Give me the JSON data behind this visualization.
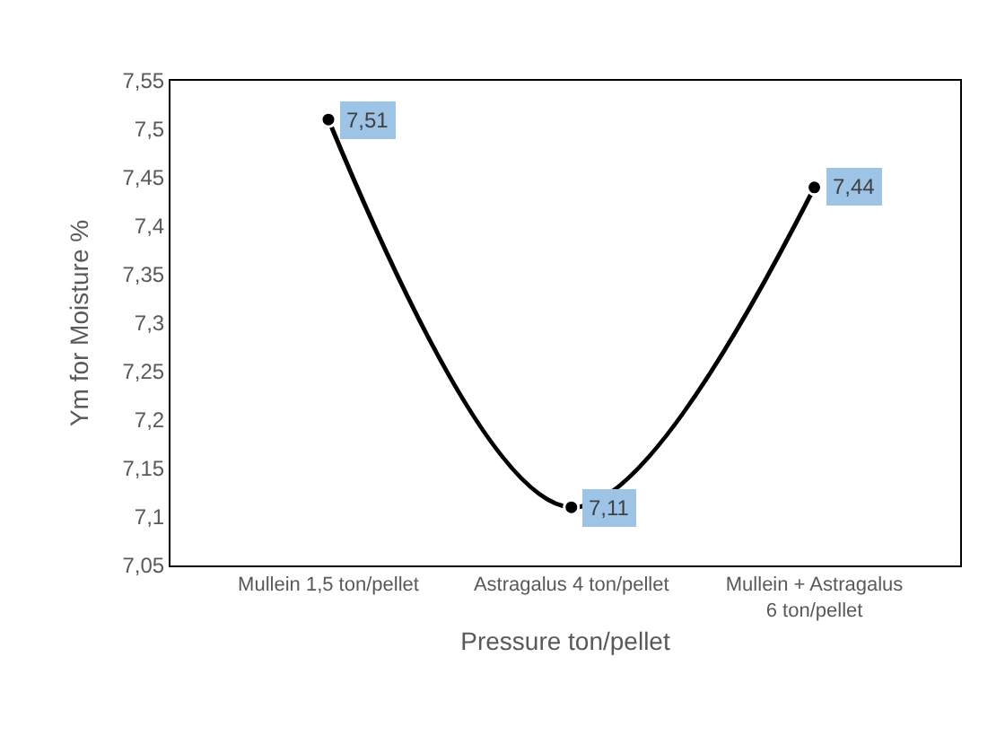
{
  "chart_data": {
    "type": "line",
    "xlabel": "Pressure ton/pellet",
    "ylabel": "Ym for Moisture %",
    "categories": [
      "Mullein 1,5 ton/pellet",
      "Astragalus 4 ton/pellet",
      "Mullein + Astragalus 6 ton/pellet"
    ],
    "series": [
      {
        "color": "#000000",
        "values": [
          7.51,
          7.11,
          7.44
        ],
        "value_labels": [
          "7,51",
          "7,11",
          "7,44"
        ]
      }
    ],
    "ylim": [
      7.05,
      7.55
    ],
    "yticks": [
      {
        "value": 7.05,
        "label": "7,05"
      },
      {
        "value": 7.1,
        "label": "7,1"
      },
      {
        "value": 7.15,
        "label": "7,15"
      },
      {
        "value": 7.2,
        "label": "7,2"
      },
      {
        "value": 7.25,
        "label": "7,25"
      },
      {
        "value": 7.3,
        "label": "7,3"
      },
      {
        "value": 7.35,
        "label": "7,35"
      },
      {
        "value": 7.4,
        "label": "7,4"
      },
      {
        "value": 7.45,
        "label": "7,45"
      },
      {
        "value": 7.5,
        "label": "7,5"
      },
      {
        "value": 7.55,
        "label": "7,55"
      }
    ],
    "legend": false,
    "marker": "circle",
    "line_style": "solid"
  }
}
